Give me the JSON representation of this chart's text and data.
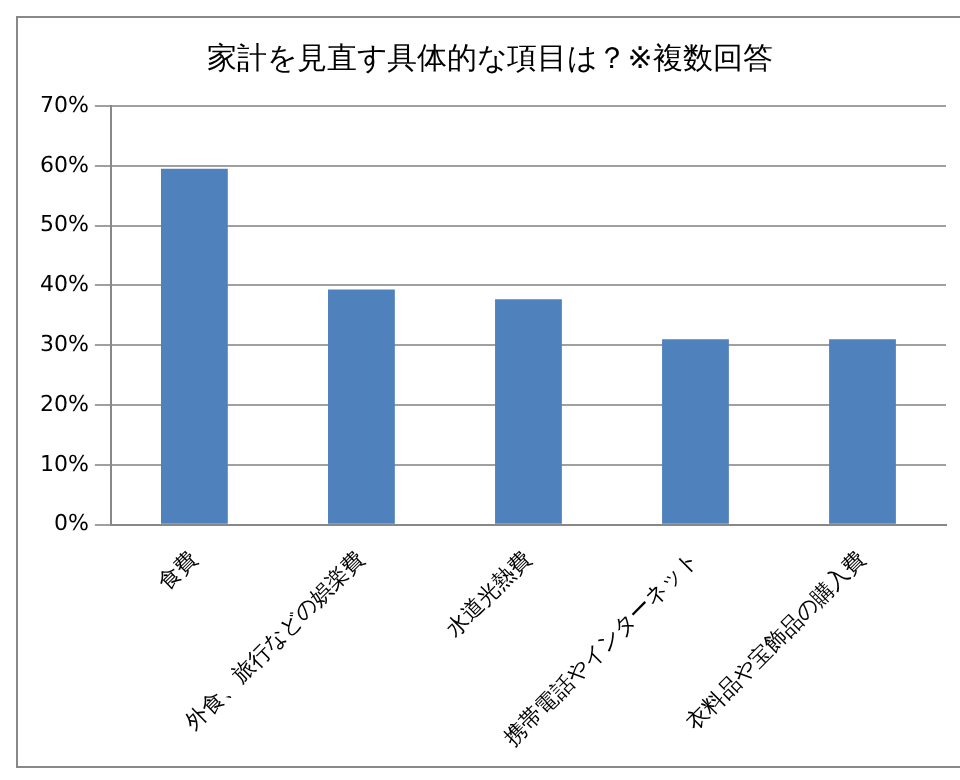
{
  "chart_data": {
    "type": "bar",
    "title": "家計を見直す具体的な項目は？※複数回答",
    "categories": [
      "食費",
      "外食、旅行などの娯楽費",
      "水道光熱費",
      "携帯電話やインターネット",
      "衣料品や宝飾品の購入費"
    ],
    "values": [
      59.5,
      39.3,
      37.7,
      31,
      31
    ],
    "color": "#4f81bd",
    "ylim": [
      0,
      70
    ],
    "yticks": [
      {
        "value": 0,
        "label": "0%"
      },
      {
        "value": 10,
        "label": "10%"
      },
      {
        "value": 20,
        "label": "20%"
      },
      {
        "value": 30,
        "label": "30%"
      },
      {
        "value": 40,
        "label": "40%"
      },
      {
        "value": 50,
        "label": "50%"
      },
      {
        "value": 60,
        "label": "60%"
      },
      {
        "value": 70,
        "label": "70%"
      }
    ],
    "grid": "y",
    "legend": false
  }
}
